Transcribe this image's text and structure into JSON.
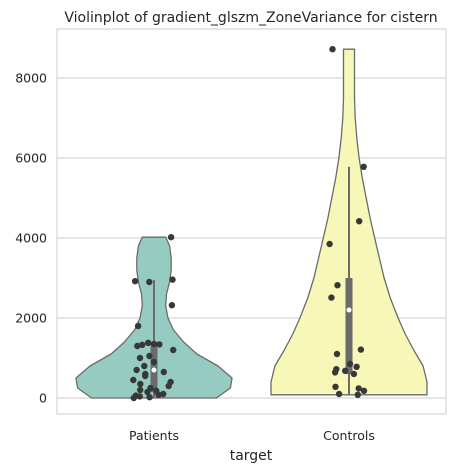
{
  "chart_data": {
    "type": "violin",
    "title": "Violinplot of gradient_glszm_ZoneVariance for cistern",
    "xlabel": "target",
    "ylabel": "",
    "categories": [
      "Patients",
      "Controls"
    ],
    "ylim": [
      -400,
      9200
    ],
    "yticks": [
      0,
      2000,
      4000,
      6000,
      8000
    ],
    "grid": "horizontal",
    "series": [
      {
        "category": "Patients",
        "color": "#96cbc1",
        "data_min": 0,
        "data_max": 4020,
        "quartiles": [
          150,
          700,
          1350
        ],
        "whiskers": [
          0,
          2950
        ],
        "density_profile": [
          [
            0,
            0.8
          ],
          [
            250,
            0.98
          ],
          [
            500,
            1.0
          ],
          [
            800,
            0.82
          ],
          [
            1100,
            0.55
          ],
          [
            1400,
            0.38
          ],
          [
            1700,
            0.25
          ],
          [
            2000,
            0.18
          ],
          [
            2300,
            0.15
          ],
          [
            2600,
            0.16
          ],
          [
            2900,
            0.2
          ],
          [
            3200,
            0.22
          ],
          [
            3500,
            0.22
          ],
          [
            3800,
            0.2
          ],
          [
            4020,
            0.15
          ]
        ],
        "points": [
          4020,
          2960,
          2920,
          2900,
          2320,
          1800,
          1380,
          1350,
          1340,
          1330,
          1300,
          1200,
          1050,
          1000,
          900,
          800,
          700,
          650,
          600,
          550,
          450,
          400,
          350,
          300,
          250,
          200,
          180,
          150,
          100,
          80,
          60,
          40,
          20,
          0
        ]
      },
      {
        "category": "Controls",
        "color": "#f7f7b8",
        "data_min": 80,
        "data_max": 8720,
        "quartiles": [
          600,
          2200,
          3000
        ],
        "whiskers": [
          80,
          5780
        ],
        "density_profile": [
          [
            80,
            1.0
          ],
          [
            400,
            1.0
          ],
          [
            800,
            0.95
          ],
          [
            1200,
            0.83
          ],
          [
            1600,
            0.72
          ],
          [
            2000,
            0.63
          ],
          [
            2500,
            0.53
          ],
          [
            3000,
            0.45
          ],
          [
            3500,
            0.39
          ],
          [
            4000,
            0.33
          ],
          [
            4500,
            0.27
          ],
          [
            5000,
            0.22
          ],
          [
            5500,
            0.17
          ],
          [
            6000,
            0.13
          ],
          [
            6500,
            0.1
          ],
          [
            7000,
            0.08
          ],
          [
            7500,
            0.07
          ],
          [
            8000,
            0.07
          ],
          [
            8720,
            0.07
          ]
        ],
        "points": [
          8720,
          5780,
          4420,
          3850,
          2820,
          2510,
          1210,
          1100,
          850,
          780,
          720,
          680,
          640,
          600,
          280,
          240,
          180,
          100,
          80
        ]
      }
    ]
  }
}
